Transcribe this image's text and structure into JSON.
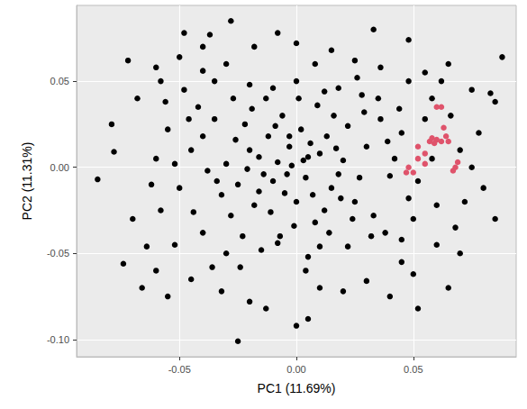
{
  "chart_data": {
    "type": "scatter",
    "x_label": "PC1 (11.69%)",
    "y_label": "PC2 (11.31%)",
    "xlim": [
      -0.094,
      0.094
    ],
    "ylim": [
      -0.11,
      0.094
    ],
    "xticks": [
      -0.05,
      {
        "value": 0,
        "label": "0.00"
      },
      0.05
    ],
    "yticks": [
      {
        "value": -0.1,
        "label": "-0.10"
      },
      -0.05,
      {
        "value": 0,
        "label": "0.00"
      },
      0.05
    ],
    "grid": true,
    "marker": "circle",
    "series": [
      {
        "color": "#000000",
        "values": [
          [
            -0.002,
            0.001
          ],
          [
            0.004,
            -0.006
          ],
          [
            -0.008,
            0.003
          ],
          [
            0.01,
            0.008
          ],
          [
            -0.014,
            -0.004
          ],
          [
            0.006,
            0.014
          ],
          [
            -0.02,
            0.01
          ],
          [
            0.015,
            -0.012
          ],
          [
            -0.005,
            -0.015
          ],
          [
            0.02,
            0.004
          ],
          [
            -0.025,
            -0.01
          ],
          [
            0.002,
            0.022
          ],
          [
            -0.012,
            0.018
          ],
          [
            0.025,
            -0.02
          ],
          [
            -0.018,
            -0.022
          ],
          [
            0.012,
            -0.025
          ],
          [
            -0.03,
            0.002
          ],
          [
            0.03,
            0.012
          ],
          [
            -0.006,
            0.03
          ],
          [
            0.008,
            -0.032
          ],
          [
            -0.022,
            0.025
          ],
          [
            0.022,
            0.024
          ],
          [
            -0.028,
            -0.028
          ],
          [
            0.018,
            -0.004
          ],
          [
            -0.01,
            -0.008
          ],
          [
            0.0,
            -0.02
          ],
          [
            -0.016,
            0.006
          ],
          [
            0.005,
            0.006
          ],
          [
            -0.003,
            0.012
          ],
          [
            0.013,
            0.018
          ],
          [
            -0.026,
            0.016
          ],
          [
            0.027,
            -0.006
          ],
          [
            -0.011,
            -0.026
          ],
          [
            0.016,
            0.03
          ],
          [
            -0.032,
            -0.016
          ],
          [
            0.033,
            -0.028
          ],
          [
            -0.001,
            -0.034
          ],
          [
            -0.019,
            0.034
          ],
          [
            0.009,
            0.036
          ],
          [
            -0.035,
            0.028
          ],
          [
            -0.045,
            0.01
          ],
          [
            -0.05,
            -0.012
          ],
          [
            -0.042,
            0.035
          ],
          [
            -0.04,
            -0.038
          ],
          [
            -0.055,
            0.022
          ],
          [
            -0.058,
            -0.025
          ],
          [
            -0.048,
            0.045
          ],
          [
            -0.052,
            -0.045
          ],
          [
            -0.035,
            0.05
          ],
          [
            -0.03,
            -0.05
          ],
          [
            -0.02,
            0.048
          ],
          [
            -0.015,
            -0.048
          ],
          [
            0.0,
            0.05
          ],
          [
            0.005,
            -0.052
          ],
          [
            0.018,
            0.046
          ],
          [
            0.022,
            -0.046
          ],
          [
            0.035,
            0.04
          ],
          [
            0.038,
            -0.038
          ],
          [
            0.045,
            0.02
          ],
          [
            0.048,
            -0.018
          ],
          [
            0.042,
            0.005
          ],
          [
            0.04,
            -0.005
          ],
          [
            0.036,
            0.028
          ],
          [
            0.032,
            -0.04
          ],
          [
            -0.038,
            -0.002
          ],
          [
            -0.044,
            -0.026
          ],
          [
            -0.046,
            0.028
          ],
          [
            0.044,
            0.034
          ],
          [
            0.05,
            -0.03
          ],
          [
            0.028,
            0.042
          ],
          [
            -0.01,
            0.046
          ],
          [
            -0.008,
            -0.044
          ],
          [
            0.012,
            0.044
          ],
          [
            0.01,
            -0.046
          ],
          [
            -0.06,
            0.005
          ],
          [
            -0.062,
            -0.01
          ],
          [
            0.055,
            0.028
          ],
          [
            0.052,
            -0.008
          ],
          [
            0.058,
            0.04
          ],
          [
            -0.056,
            0.038
          ],
          [
            -0.085,
            -0.007
          ],
          [
            -0.072,
            0.062
          ],
          [
            -0.074,
            -0.056
          ],
          [
            -0.079,
            0.025
          ],
          [
            -0.078,
            0.009
          ],
          [
            -0.028,
            0.085
          ],
          [
            -0.037,
            0.077
          ],
          [
            -0.025,
            -0.101
          ],
          [
            -0.013,
            -0.082
          ],
          [
            0.0,
            -0.092
          ],
          [
            0.005,
            -0.088
          ],
          [
            0.088,
            0.064
          ],
          [
            0.033,
            0.08
          ],
          [
            0.048,
            0.074
          ],
          [
            0.065,
            0.06
          ],
          [
            0.083,
            0.043
          ],
          [
            0.085,
            0.038
          ],
          [
            0.075,
            0.045
          ],
          [
            0.08,
            -0.012
          ],
          [
            0.085,
            -0.03
          ],
          [
            0.07,
            -0.05
          ],
          [
            0.065,
            -0.07
          ],
          [
            0.05,
            -0.062
          ],
          [
            0.04,
            -0.075
          ],
          [
            0.052,
            -0.082
          ],
          [
            -0.066,
            -0.07
          ],
          [
            -0.06,
            0.058
          ],
          [
            -0.068,
            0.04
          ],
          [
            -0.07,
            -0.03
          ],
          [
            -0.064,
            -0.046
          ],
          [
            -0.05,
            0.064
          ],
          [
            -0.045,
            -0.065
          ],
          [
            -0.04,
            0.07
          ],
          [
            -0.032,
            -0.072
          ],
          [
            -0.018,
            0.07
          ],
          [
            -0.02,
            -0.078
          ],
          [
            0.0,
            0.072
          ],
          [
            0.01,
            -0.07
          ],
          [
            0.015,
            0.068
          ],
          [
            0.02,
            -0.072
          ],
          [
            0.025,
            0.062
          ],
          [
            0.03,
            -0.066
          ],
          [
            0.06,
            -0.045
          ],
          [
            0.066,
            0.03
          ],
          [
            0.07,
            0.01
          ],
          [
            0.072,
            -0.02
          ],
          [
            0.075,
            0.0
          ],
          [
            0.078,
            0.02
          ],
          [
            0.068,
            -0.035
          ],
          [
            0.062,
            0.05
          ],
          [
            -0.06,
            -0.06
          ],
          [
            -0.055,
            -0.075
          ],
          [
            -0.048,
            0.078
          ],
          [
            0.055,
            0.055
          ],
          [
            0.045,
            -0.055
          ],
          [
            -0.008,
            0.078
          ],
          [
            0.008,
            0.06
          ],
          [
            -0.03,
            0.06
          ],
          [
            -0.036,
            -0.058
          ],
          [
            0.036,
            0.058
          ],
          [
            -0.004,
            -0.004
          ],
          [
            0.007,
            -0.016
          ],
          [
            -0.016,
            -0.014
          ],
          [
            0.003,
            0.004
          ],
          [
            -0.021,
            -0.001
          ],
          [
            0.017,
            0.011
          ],
          [
            -0.009,
            0.024
          ],
          [
            0.024,
            -0.03
          ],
          [
            -0.027,
            0.04
          ],
          [
            0.029,
            0.032
          ],
          [
            -0.034,
            -0.008
          ],
          [
            -0.007,
            -0.04
          ],
          [
            0.014,
            -0.038
          ],
          [
            -0.023,
            -0.04
          ],
          [
            0.039,
            0.015
          ],
          [
            -0.04,
            0.018
          ],
          [
            0.001,
            0.04
          ],
          [
            -0.013,
            0.04
          ],
          [
            0.019,
            -0.018
          ],
          [
            -0.003,
            0.018
          ],
          [
            0.045,
            -0.042
          ],
          [
            -0.052,
            0.002
          ],
          [
            0.058,
            0.005
          ],
          [
            0.048,
            0.05
          ],
          [
            -0.04,
            0.056
          ],
          [
            -0.024,
            -0.058
          ],
          [
            0.004,
            -0.06
          ],
          [
            0.026,
            0.052
          ],
          [
            -0.058,
            0.05
          ],
          [
            0.06,
            -0.022
          ]
        ]
      },
      {
        "color": "#DF536B",
        "values": [
          [
            0.047,
            -0.003
          ],
          [
            0.05,
            -0.003
          ],
          [
            0.052,
            0.005
          ],
          [
            0.055,
            0.008
          ],
          [
            0.057,
            0.015
          ],
          [
            0.058,
            0.017
          ],
          [
            0.06,
            0.035
          ],
          [
            0.062,
            0.035
          ],
          [
            0.06,
            0.016
          ],
          [
            0.062,
            0.015
          ],
          [
            0.063,
            0.023
          ],
          [
            0.065,
            0.015
          ],
          [
            0.068,
            0.0
          ],
          [
            0.067,
            -0.002
          ],
          [
            0.069,
            0.003
          ],
          [
            0.055,
            0.002
          ],
          [
            0.052,
            0.012
          ],
          [
            0.059,
            0.014
          ],
          [
            0.064,
            0.018
          ],
          [
            0.048,
            0.0
          ]
        ]
      }
    ]
  }
}
